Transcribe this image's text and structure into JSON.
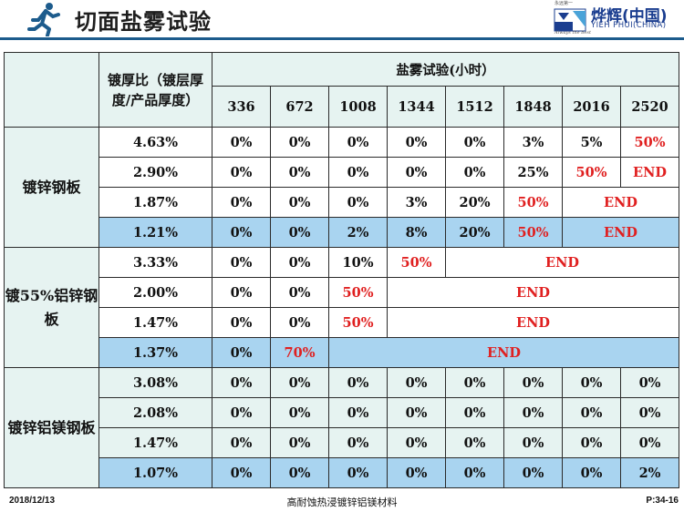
{
  "header": {
    "title": "切面盐雾试验",
    "logo_name": "烨辉(中国)",
    "logo_sub": "YIEH PHUI(CHINA)",
    "logo_small_top": "永远第一",
    "logo_tag": "Always the best",
    "colors": {
      "rule": "#1c5b8c",
      "runner": "#1c5b8c",
      "logo": "#1a3d8f"
    }
  },
  "table": {
    "ratio_header": "镀厚比（镀层厚度/产品厚度）",
    "salt_header": "盐雾试验(小时）",
    "hours": [
      "336",
      "672",
      "1008",
      "1344",
      "1512",
      "1848",
      "2016",
      "2520"
    ],
    "groups": [
      {
        "name": "镀锌钢板",
        "rows": [
          {
            "ratio": "4.63%",
            "values": [
              "0%",
              "0%",
              "0%",
              "0%",
              "0%",
              "3%",
              "5%",
              "50%"
            ]
          },
          {
            "ratio": "2.90%",
            "values": [
              "0%",
              "0%",
              "0%",
              "0%",
              "0%",
              "25%",
              "50%",
              "END"
            ]
          },
          {
            "ratio": "1.87%",
            "values": [
              "0%",
              "0%",
              "0%",
              "3%",
              "20%",
              "50%",
              "END"
            ]
          },
          {
            "ratio": "1.21%",
            "values": [
              "0%",
              "0%",
              "2%",
              "8%",
              "20%",
              "50%",
              "END"
            ]
          }
        ]
      },
      {
        "name": "镀55%铝锌钢板",
        "rows": [
          {
            "ratio": "3.33%",
            "values": [
              "0%",
              "0%",
              "10%",
              "50%",
              "END"
            ]
          },
          {
            "ratio": "2.00%",
            "values": [
              "0%",
              "0%",
              "50%",
              "END"
            ]
          },
          {
            "ratio": "1.47%",
            "values": [
              "0%",
              "0%",
              "50%",
              "END"
            ]
          },
          {
            "ratio": "1.37%",
            "values": [
              "0%",
              "70%",
              "END"
            ]
          }
        ]
      },
      {
        "name": "镀锌铝镁钢板",
        "rows": [
          {
            "ratio": "3.08%",
            "values": [
              "0%",
              "0%",
              "0%",
              "0%",
              "0%",
              "0%",
              "0%",
              "0%"
            ]
          },
          {
            "ratio": "2.08%",
            "values": [
              "0%",
              "0%",
              "0%",
              "0%",
              "0%",
              "0%",
              "0%",
              "0%"
            ]
          },
          {
            "ratio": "1.47%",
            "values": [
              "0%",
              "0%",
              "0%",
              "0%",
              "0%",
              "0%",
              "0%",
              "0%"
            ]
          },
          {
            "ratio": "1.07%",
            "values": [
              "0%",
              "0%",
              "0%",
              "0%",
              "0%",
              "0%",
              "0%",
              "2%"
            ]
          }
        ]
      }
    ],
    "colors": {
      "highlight_row": "#a9d4f0",
      "mint": "#e6f3f1",
      "alert_text": "#e02020"
    }
  },
  "footer": {
    "date": "2018/12/13",
    "center": "高耐蚀热浸镀锌铝镁材料",
    "page": "P:34-16"
  }
}
